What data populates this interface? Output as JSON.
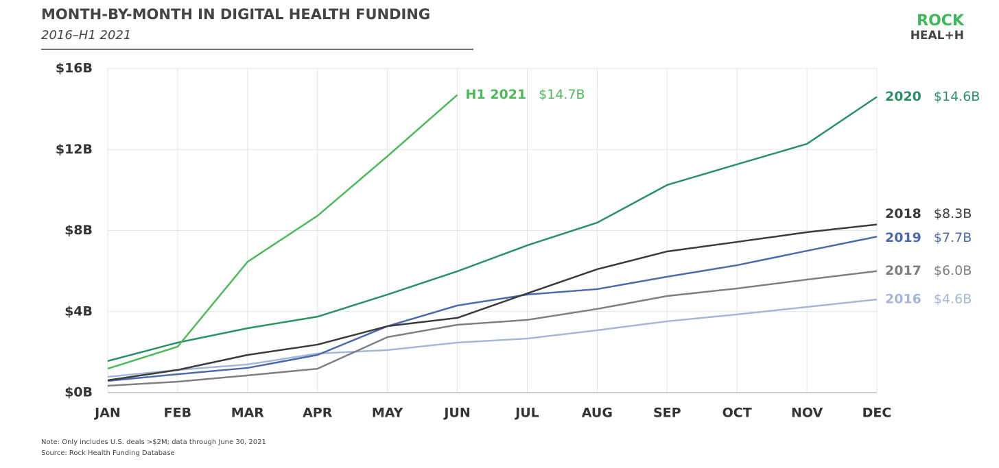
{
  "chart_data": {
    "type": "line",
    "title": "MONTH-BY-MONTH IN DIGITAL HEALTH FUNDING",
    "subtitle": "2016–H1 2021",
    "logo": {
      "line1": "ROCK",
      "line2": "HEAL+H"
    },
    "notes": [
      "Note: Only includes U.S. deals >$2M; data through June 30, 2021",
      "Source: Rock Health Funding Database"
    ],
    "categories": [
      "JAN",
      "FEB",
      "MAR",
      "APR",
      "MAY",
      "JUN",
      "JUL",
      "AUG",
      "SEP",
      "OCT",
      "NOV",
      "DEC"
    ],
    "ylim": [
      0,
      16
    ],
    "yticks": [
      {
        "value": 0,
        "label": "$0B"
      },
      {
        "value": 4,
        "label": "$4B"
      },
      {
        "value": 8,
        "label": "$8B"
      },
      {
        "value": 12,
        "label": "$12B"
      },
      {
        "value": 16,
        "label": "$16B"
      }
    ],
    "grid": true,
    "series": [
      {
        "name": "2016",
        "color": "#a6b6d6",
        "values": [
          0.78,
          1.12,
          1.39,
          1.93,
          2.1,
          2.47,
          2.67,
          3.08,
          3.52,
          3.86,
          4.23,
          4.6
        ],
        "value_labels": [
          null,
          null,
          null,
          null,
          null,
          null,
          null,
          null,
          null,
          null,
          null,
          "$4.6B"
        ]
      },
      {
        "name": "2017",
        "color": "#808080",
        "values": [
          0.34,
          0.54,
          0.85,
          1.18,
          2.74,
          3.35,
          3.59,
          4.13,
          4.77,
          5.14,
          5.58,
          6.0
        ],
        "value_labels": [
          null,
          null,
          null,
          null,
          null,
          null,
          null,
          null,
          null,
          null,
          null,
          "$6.0B"
        ]
      },
      {
        "name": "2019",
        "color": "#4a6aad",
        "values": [
          0.58,
          0.91,
          1.22,
          1.86,
          3.28,
          4.3,
          4.84,
          5.11,
          5.72,
          6.29,
          7.0,
          7.7
        ],
        "value_labels": [
          null,
          null,
          null,
          null,
          null,
          null,
          null,
          null,
          null,
          null,
          null,
          "$7.7B"
        ]
      },
      {
        "name": "2018",
        "color": "#3a3a3a",
        "values": [
          0.61,
          1.12,
          1.86,
          2.37,
          3.28,
          3.69,
          4.9,
          6.09,
          6.97,
          7.44,
          7.92,
          8.3
        ],
        "value_labels": [
          null,
          null,
          null,
          null,
          null,
          null,
          null,
          null,
          null,
          null,
          null,
          "$8.3B"
        ]
      },
      {
        "name": "2020",
        "color": "#2a9165",
        "values": [
          1.56,
          2.47,
          3.18,
          3.75,
          4.84,
          5.99,
          7.27,
          8.39,
          10.25,
          11.27,
          12.28,
          14.6
        ],
        "value_labels": [
          null,
          null,
          null,
          null,
          null,
          null,
          null,
          null,
          null,
          null,
          null,
          "$14.6B"
        ]
      },
      {
        "name": "H1 2021",
        "color": "#4cb95a",
        "values": [
          1.18,
          2.27,
          6.46,
          8.73,
          11.67,
          14.7,
          null,
          null,
          null,
          null,
          null,
          null
        ],
        "value_labels": [
          null,
          null,
          null,
          null,
          null,
          "$14.7B",
          null,
          null,
          null,
          null,
          null,
          null
        ]
      }
    ]
  }
}
